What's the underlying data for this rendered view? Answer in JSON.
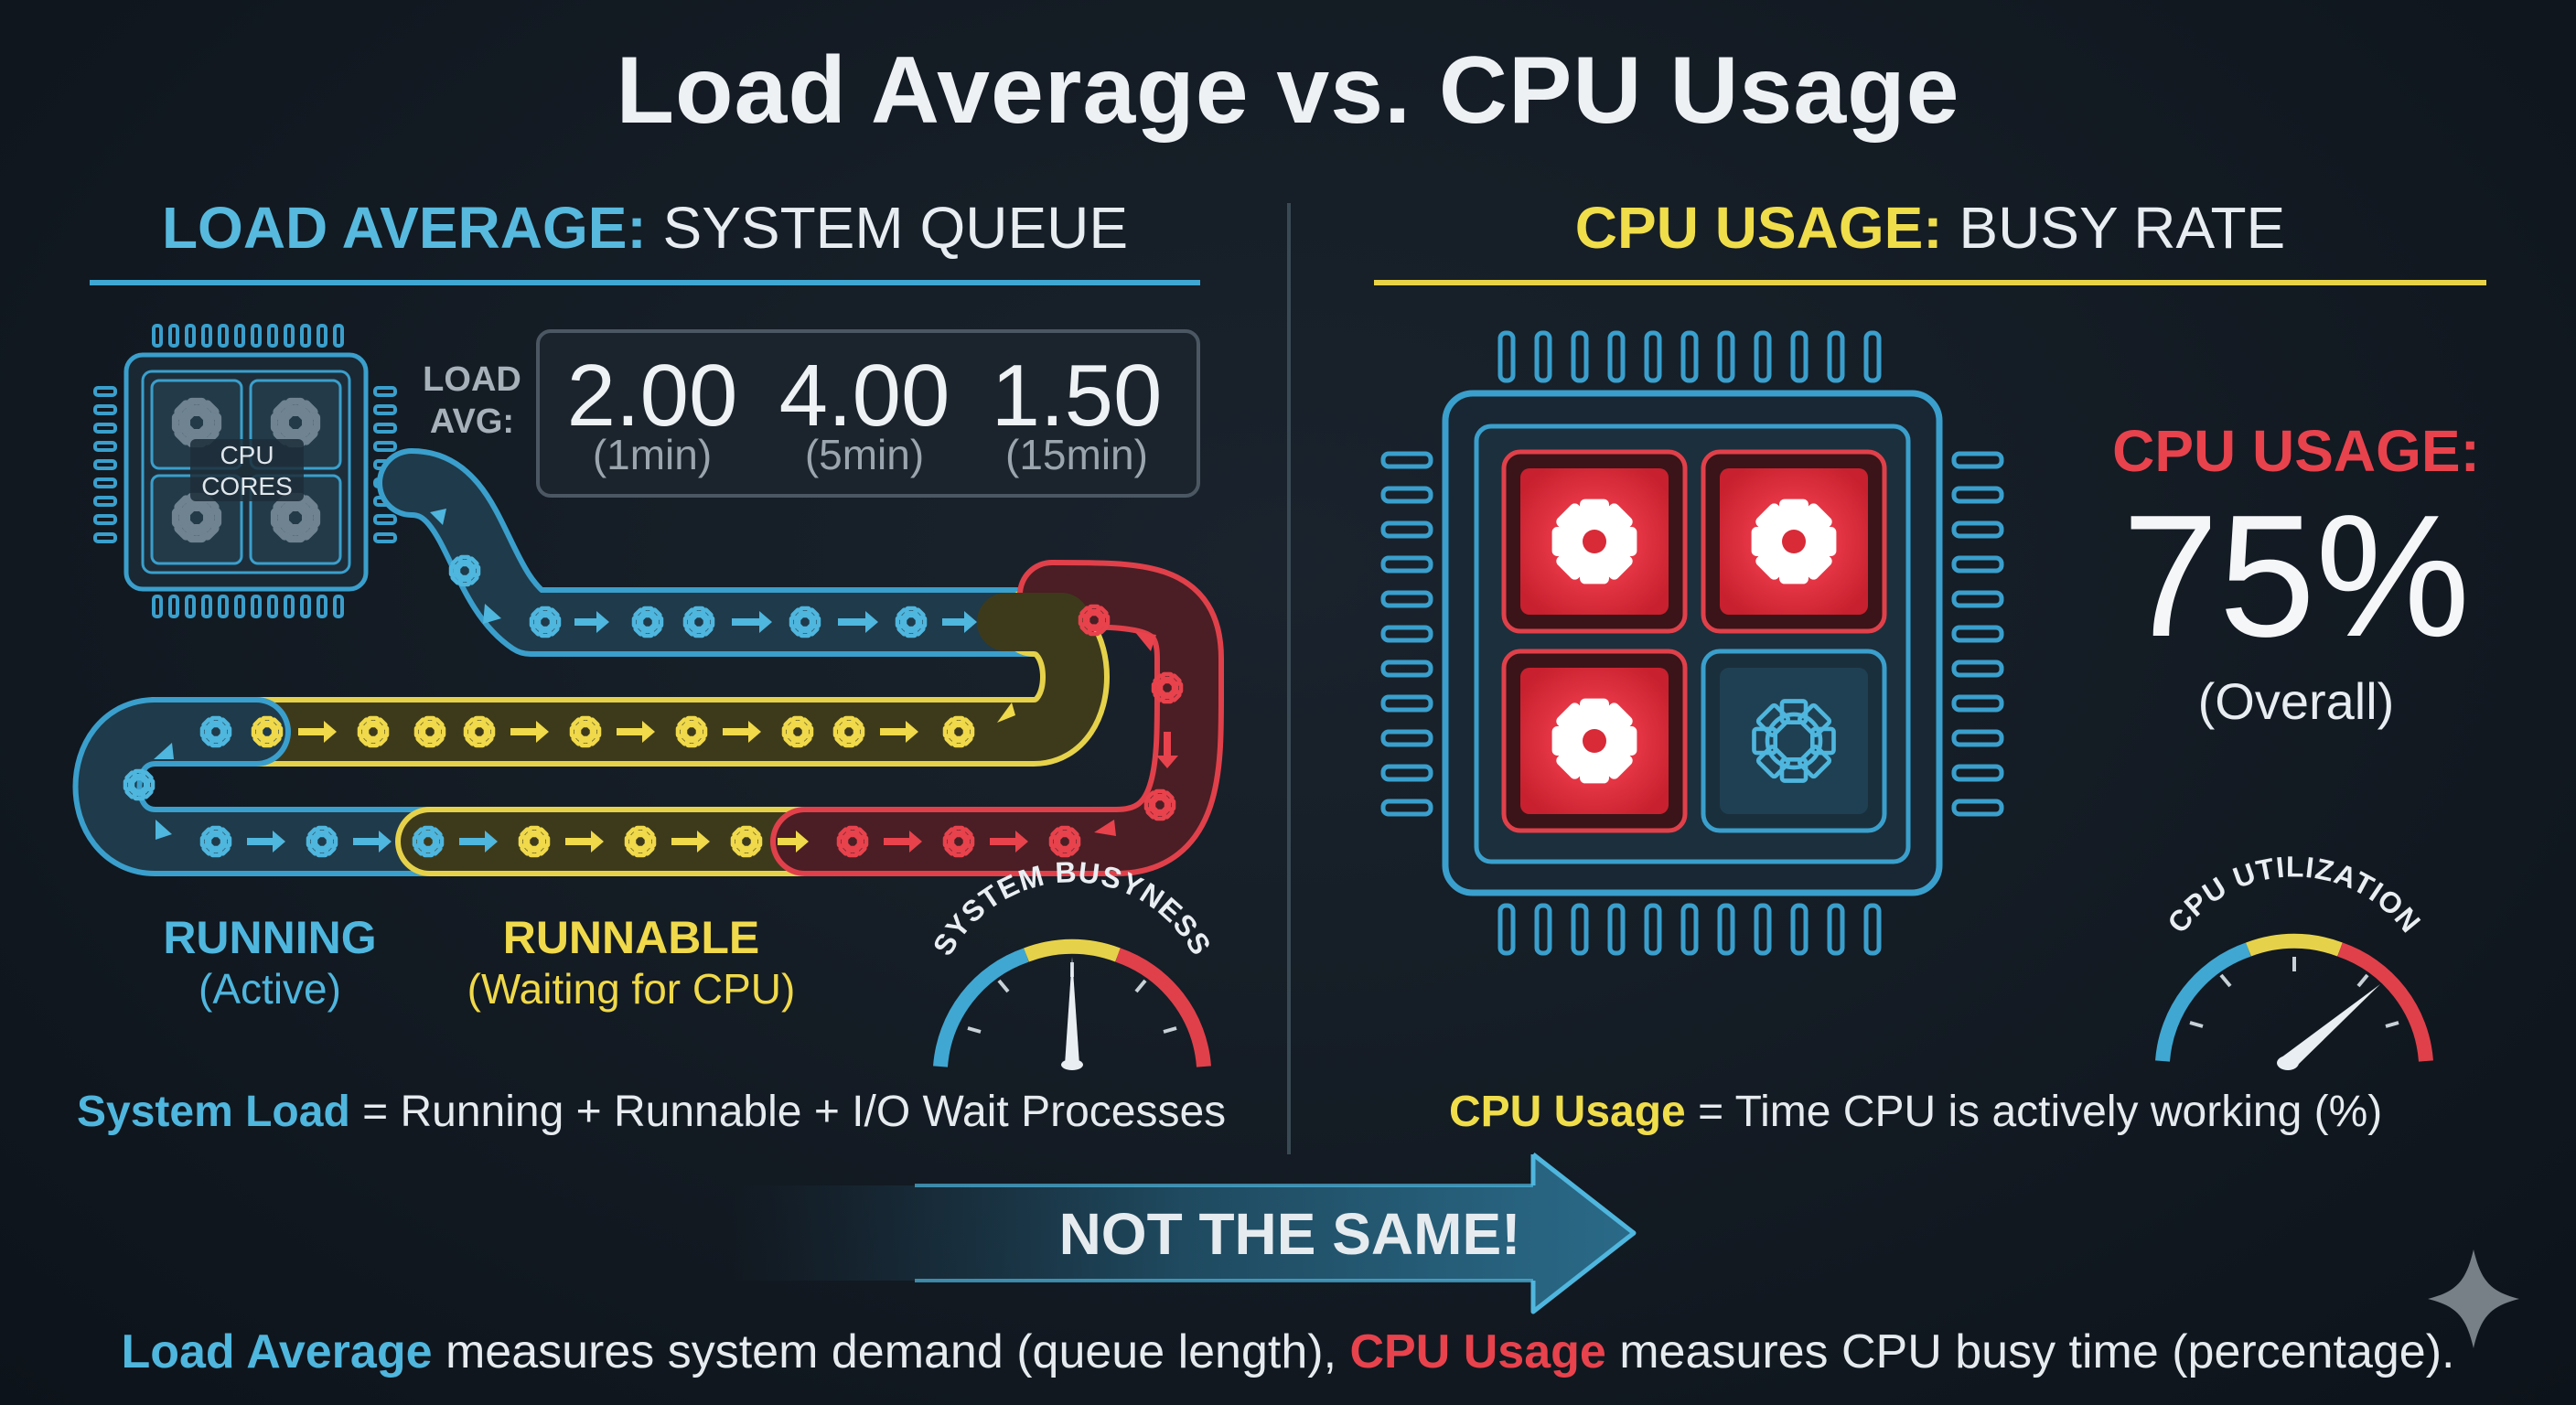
{
  "title": "Load Average vs. CPU Usage",
  "left_section": {
    "heading_highlight": "LOAD AVERAGE:",
    "heading_rest": "SYSTEM QUEUE",
    "chip_label_line1": "CPU",
    "chip_label_line2": "CORES",
    "load_avg_label_line1": "LOAD",
    "load_avg_label_line2": "AVG:",
    "load_values": [
      {
        "value": "2.00",
        "period": "(1min)"
      },
      {
        "value": "4.00",
        "period": "(5min)"
      },
      {
        "value": "1.50",
        "period": "(15min)"
      }
    ],
    "running_label": "RUNNING",
    "running_sub": "(Active)",
    "runnable_label": "RUNNABLE",
    "runnable_sub": "(Waiting for CPU)",
    "gauge_label": "SYSTEM BUSYNESS",
    "formula_key": "System Load",
    "formula_rest": " = Running + Runnable + I/O Wait Processes"
  },
  "right_section": {
    "heading_highlight": "CPU USAGE:",
    "heading_rest": "BUSY RATE",
    "cpu_usage_label": "CPU USAGE:",
    "cpu_usage_value": "75%",
    "cpu_usage_sub": "(Overall)",
    "cpu_usage_fraction": 0.75,
    "gauge_label": "CPU UTILIZATION",
    "formula_key": "CPU Usage",
    "formula_rest": " = Time CPU is actively working (%)"
  },
  "banner": "NOT THE SAME!",
  "bottom_note": {
    "la_key": "Load Average",
    "la_rest": " measures system demand (queue length), ",
    "cu_key": "CPU Usage",
    "cu_rest": " measures CPU busy time (percentage)."
  },
  "colors": {
    "blue": "#4fb6de",
    "yellow": "#f0d94a",
    "red": "#e8424d",
    "background": "#131a22"
  },
  "icons": [
    "gear-icon",
    "arrow-right-icon",
    "cpu-chip-icon",
    "gauge-icon",
    "sparkle-icon"
  ]
}
